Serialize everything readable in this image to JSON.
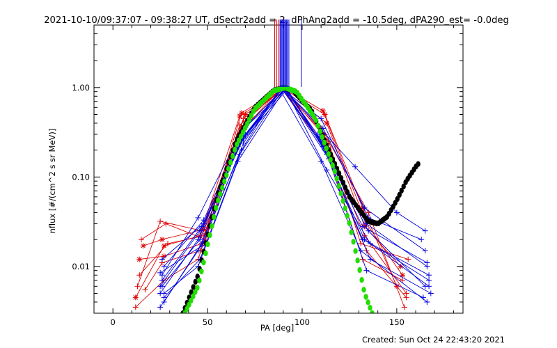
{
  "chart_data": {
    "type": "scatter",
    "title": "2021-10-10/09:37:07 - 09:38:27 UT, dSectr2add = 2, dPhAng2add = -10.5deg, dPA290_est= -0.0deg",
    "xlabel": "PA [deg]",
    "ylabel": "nflux [#/(cm^2 s sr MeV)]",
    "xlim": [
      -10,
      185
    ],
    "ylim": [
      0.003,
      5.0
    ],
    "yscale": "log",
    "x_ticks": [
      "0",
      "50",
      "100",
      "150"
    ],
    "y_ticks": [
      "0.01",
      "0.10",
      "1.00"
    ],
    "footer": "Created: Sun Oct 24 22:43:20 2021",
    "colors": {
      "red": "#e00000",
      "blue": "#0000e0",
      "black": "#000000",
      "green": "#22dd00"
    },
    "series": [
      {
        "color": "red",
        "marker": "*",
        "points": [
          [
            12,
            0.0045
          ],
          [
            27,
            0.017
          ],
          [
            46,
            0.022
          ],
          [
            67,
            0.48
          ],
          [
            90,
            0.97
          ],
          [
            112,
            0.5
          ],
          [
            132,
            0.045
          ],
          [
            150,
            0.006
          ]
        ]
      },
      {
        "color": "red",
        "marker": "*",
        "points": [
          [
            14,
            0.012
          ],
          [
            27,
            0.013
          ],
          [
            47,
            0.018
          ],
          [
            68,
            0.52
          ],
          [
            89,
            0.98
          ],
          [
            113,
            0.4
          ],
          [
            133,
            0.028
          ],
          [
            152,
            0.01
          ]
        ]
      },
      {
        "color": "red",
        "marker": "*",
        "points": [
          [
            16,
            0.017
          ],
          [
            26,
            0.02
          ],
          [
            48,
            0.026
          ],
          [
            70,
            0.5
          ],
          [
            91,
            0.98
          ],
          [
            111,
            0.55
          ],
          [
            134,
            0.03
          ],
          [
            153,
            0.008
          ]
        ]
      },
      {
        "color": "red",
        "marker": "+",
        "points": [
          [
            13,
            0.006
          ],
          [
            25,
            0.032
          ],
          [
            47,
            0.025
          ],
          [
            69,
            0.45
          ],
          [
            90,
            0.96
          ],
          [
            110,
            0.35
          ],
          [
            133,
            0.022
          ],
          [
            155,
            0.005
          ]
        ]
      },
      {
        "color": "red",
        "marker": "+",
        "points": [
          [
            15,
            0.02
          ],
          [
            28,
            0.03
          ],
          [
            49,
            0.02
          ],
          [
            70,
            0.42
          ],
          [
            89,
            0.97
          ],
          [
            112,
            0.3
          ],
          [
            135,
            0.04
          ],
          [
            154,
            0.0035
          ]
        ]
      },
      {
        "color": "red",
        "marker": "+",
        "points": [
          [
            17,
            0.0055
          ],
          [
            26,
            0.011
          ],
          [
            46,
            0.015
          ],
          [
            67,
            0.38
          ],
          [
            90,
            0.99
          ],
          [
            114,
            0.25
          ],
          [
            131,
            0.018
          ],
          [
            156,
            0.012
          ]
        ]
      },
      {
        "color": "red",
        "marker": "+",
        "points": [
          [
            12,
            0.0035
          ],
          [
            27,
            0.007
          ],
          [
            45,
            0.012
          ],
          [
            68,
            0.35
          ],
          [
            91,
            0.96
          ],
          [
            113,
            0.2
          ],
          [
            132,
            0.012
          ],
          [
            153,
            0.007
          ]
        ]
      },
      {
        "color": "red",
        "marker": "+",
        "points": [
          [
            14,
            0.008
          ],
          [
            29,
            0.018
          ],
          [
            48,
            0.022
          ],
          [
            66,
            0.3
          ],
          [
            89,
            0.98
          ],
          [
            111,
            0.22
          ],
          [
            134,
            0.015
          ],
          [
            155,
            0.0045
          ]
        ]
      },
      {
        "color": "blue",
        "marker": "+",
        "points": [
          [
            26,
            0.008
          ],
          [
            45,
            0.035
          ],
          [
            68,
            0.33
          ],
          [
            90,
            0.97
          ],
          [
            111,
            0.35
          ],
          [
            133,
            0.045
          ],
          [
            165,
            0.015
          ]
        ]
      },
      {
        "color": "blue",
        "marker": "+",
        "points": [
          [
            25,
            0.006
          ],
          [
            46,
            0.025
          ],
          [
            69,
            0.28
          ],
          [
            91,
            0.96
          ],
          [
            109,
            0.28
          ],
          [
            134,
            0.03
          ],
          [
            166,
            0.01
          ]
        ]
      },
      {
        "color": "blue",
        "marker": "+",
        "points": [
          [
            27,
            0.004
          ],
          [
            47,
            0.018
          ],
          [
            67,
            0.25
          ],
          [
            89,
            0.98
          ],
          [
            110,
            0.25
          ],
          [
            132,
            0.02
          ],
          [
            167,
            0.008
          ]
        ]
      },
      {
        "color": "blue",
        "marker": "+",
        "points": [
          [
            26,
            0.012
          ],
          [
            48,
            0.03
          ],
          [
            70,
            0.3
          ],
          [
            90,
            0.99
          ],
          [
            112,
            0.2
          ],
          [
            135,
            0.025
          ],
          [
            165,
            0.006
          ]
        ]
      },
      {
        "color": "blue",
        "marker": "+",
        "points": [
          [
            25,
            0.005
          ],
          [
            45,
            0.02
          ],
          [
            66,
            0.22
          ],
          [
            92,
            0.95
          ],
          [
            113,
            0.18
          ],
          [
            136,
            0.012
          ],
          [
            168,
            0.005
          ]
        ]
      },
      {
        "color": "blue",
        "marker": "+",
        "points": [
          [
            27,
            0.0045
          ],
          [
            46,
            0.012
          ],
          [
            68,
            0.2
          ],
          [
            88,
            0.97
          ],
          [
            110,
            0.15
          ],
          [
            131,
            0.015
          ],
          [
            166,
            0.004
          ]
        ]
      },
      {
        "color": "blue",
        "marker": "+",
        "points": [
          [
            26,
            0.007
          ],
          [
            47,
            0.028
          ],
          [
            69,
            0.27
          ],
          [
            91,
            0.98
          ],
          [
            108,
            0.3
          ],
          [
            133,
            0.02
          ],
          [
            167,
            0.007
          ]
        ]
      },
      {
        "color": "blue",
        "marker": "+",
        "points": [
          [
            25,
            0.0035
          ],
          [
            45,
            0.015
          ],
          [
            67,
            0.18
          ],
          [
            90,
            0.96
          ],
          [
            114,
            0.16
          ],
          [
            134,
            0.009
          ],
          [
            164,
            0.0045
          ]
        ]
      },
      {
        "color": "blue",
        "marker": "+",
        "points": [
          [
            27,
            0.01
          ],
          [
            48,
            0.033
          ],
          [
            70,
            0.36
          ],
          [
            92,
            0.97
          ],
          [
            111,
            0.22
          ],
          [
            132,
            0.028
          ],
          [
            166,
            0.011
          ]
        ]
      },
      {
        "color": "blue",
        "marker": "+",
        "points": [
          [
            26,
            0.006
          ],
          [
            46,
            0.02
          ],
          [
            68,
            0.26
          ],
          [
            90,
            0.99
          ],
          [
            128,
            0.13
          ],
          [
            150,
            0.04
          ],
          [
            165,
            0.025
          ]
        ]
      },
      {
        "color": "blue",
        "marker": "+",
        "points": [
          [
            25,
            0.0085
          ],
          [
            47,
            0.017
          ],
          [
            69,
            0.24
          ],
          [
            89,
            0.98
          ],
          [
            110,
            0.45
          ],
          [
            135,
            0.035
          ],
          [
            163,
            0.02
          ]
        ]
      },
      {
        "color": "blue",
        "marker": "+",
        "points": [
          [
            27,
            0.005
          ],
          [
            45,
            0.01
          ],
          [
            66,
            0.15
          ],
          [
            91,
            0.97
          ],
          [
            113,
            0.12
          ],
          [
            136,
            0.018
          ],
          [
            167,
            0.006
          ]
        ]
      }
    ],
    "vertical_lines": [
      {
        "color": "red",
        "x": [
          85.5,
          86.5,
          87.5
        ]
      },
      {
        "color": "blue",
        "x": [
          88.3,
          88.8,
          89.3,
          89.8,
          90.3,
          90.8,
          91.3,
          91.8,
          92.3,
          93,
          99.5
        ]
      }
    ],
    "fit_curves": [
      {
        "name": "",
        "color": "black",
        "peak_x": 90,
        "peak_y": 1.0,
        "points": [
          [
            37,
            0.003
          ],
          [
            45,
            0.008
          ],
          [
            55,
            0.06
          ],
          [
            65,
            0.25
          ],
          [
            75,
            0.6
          ],
          [
            85,
            0.93
          ],
          [
            90,
            1.0
          ],
          [
            95,
            0.93
          ],
          [
            105,
            0.55
          ],
          [
            115,
            0.18
          ],
          [
            125,
            0.06
          ],
          [
            135,
            0.032
          ],
          [
            140,
            0.03
          ],
          [
            145,
            0.036
          ],
          [
            150,
            0.055
          ],
          [
            155,
            0.09
          ],
          [
            160,
            0.13
          ],
          [
            162,
            0.145
          ]
        ]
      },
      {
        "name": "",
        "color": "green",
        "peak_x": 91,
        "peak_y": 1.0,
        "points": [
          [
            38,
            0.003
          ],
          [
            45,
            0.006
          ],
          [
            55,
            0.05
          ],
          [
            65,
            0.22
          ],
          [
            75,
            0.58
          ],
          [
            85,
            0.92
          ],
          [
            91,
            1.0
          ],
          [
            97,
            0.9
          ],
          [
            107,
            0.45
          ],
          [
            117,
            0.12
          ],
          [
            125,
            0.03
          ],
          [
            130,
            0.01
          ],
          [
            133,
            0.005
          ],
          [
            137,
            0.003
          ]
        ]
      }
    ]
  }
}
